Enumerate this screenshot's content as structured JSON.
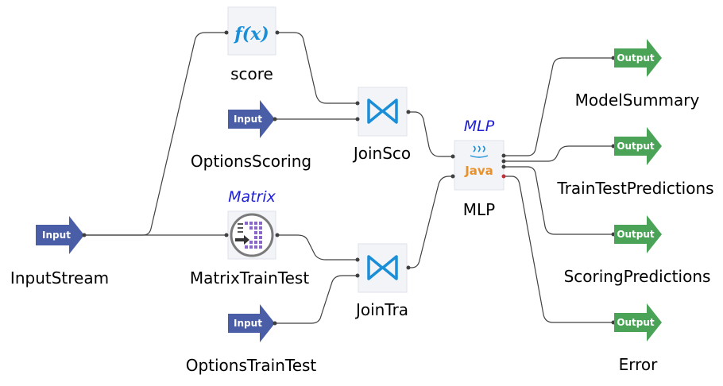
{
  "colors": {
    "input_arrow": "#4a5ea8",
    "output_arrow": "#4aa357",
    "join_icon": "#1a8fd8",
    "edge": "#404040",
    "tag": "#1f1fd8"
  },
  "nodes": {
    "input_stream": {
      "label": "InputStream",
      "badge": "Input",
      "icon": "input-arrow-icon"
    },
    "options_scoring": {
      "label": "OptionsScoring",
      "badge": "Input",
      "icon": "input-arrow-icon"
    },
    "options_train_test": {
      "label": "OptionsTrainTest",
      "badge": "Input",
      "icon": "input-arrow-icon"
    },
    "score": {
      "label": "score",
      "icon_text": "f(x)",
      "icon": "function-icon"
    },
    "matrix_train_test": {
      "label": "MatrixTrainTest",
      "tag": "Matrix",
      "icon": "matrix-icon"
    },
    "join_sco": {
      "label": "JoinSco",
      "icon": "join-icon"
    },
    "join_tra": {
      "label": "JoinTra",
      "icon": "join-icon"
    },
    "mlp": {
      "label": "MLP",
      "tag": "MLP",
      "icon_text": "Java",
      "icon": "java-icon"
    },
    "model_summary": {
      "label": "ModelSummary",
      "badge": "Output",
      "icon": "output-arrow-icon"
    },
    "train_test_predictions": {
      "label": "TrainTestPredictions",
      "badge": "Output",
      "icon": "output-arrow-icon"
    },
    "scoring_predictions": {
      "label": "ScoringPredictions",
      "badge": "Output",
      "icon": "output-arrow-icon"
    },
    "error": {
      "label": "Error",
      "badge": "Output",
      "icon": "output-arrow-icon"
    }
  }
}
